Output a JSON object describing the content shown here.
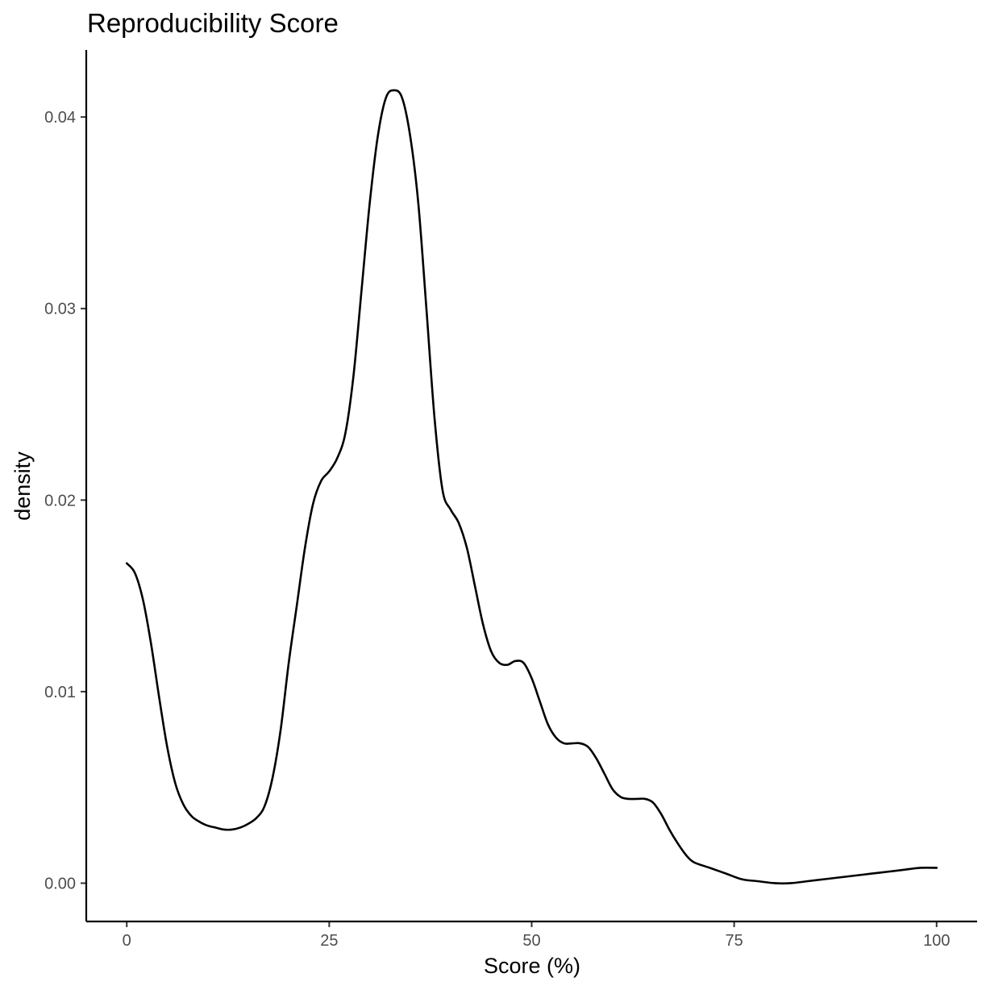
{
  "chart_data": {
    "type": "line",
    "title": "Reproducibility Score",
    "xlabel": "Score (%)",
    "ylabel": "density",
    "xlim": [
      -5,
      105
    ],
    "ylim": [
      -0.002,
      0.0435
    ],
    "x_ticks": [
      0,
      25,
      50,
      75,
      100
    ],
    "x_tick_labels": [
      "0",
      "25",
      "50",
      "75",
      "100"
    ],
    "y_ticks": [
      0.0,
      0.01,
      0.02,
      0.03,
      0.04
    ],
    "y_tick_labels": [
      "0.00",
      "0.01",
      "0.02",
      "0.03",
      "0.04"
    ],
    "grid": false,
    "legend": "none",
    "line_color": "#000000",
    "series": [
      {
        "x": [
          0,
          1,
          2,
          3,
          4,
          5,
          6,
          7,
          8,
          9,
          10,
          11,
          12,
          13,
          14,
          15,
          16,
          17,
          18,
          19,
          20,
          21,
          22,
          23,
          24,
          25,
          26,
          27,
          28,
          29,
          30,
          31,
          32,
          33,
          34,
          35,
          36,
          37,
          38,
          39,
          40,
          41,
          42,
          43,
          44,
          45,
          46,
          47,
          48,
          49,
          50,
          51,
          52,
          53,
          54,
          55,
          56,
          57,
          58,
          59,
          60,
          61,
          62,
          63,
          64,
          65,
          66,
          67,
          68,
          69,
          70,
          72,
          74,
          76,
          78,
          80,
          82,
          84,
          86,
          88,
          90,
          92,
          94,
          96,
          98,
          100
        ],
        "y": [
          0.0167,
          0.0162,
          0.0148,
          0.0125,
          0.0097,
          0.0071,
          0.0052,
          0.0041,
          0.0035,
          0.0032,
          0.003,
          0.0029,
          0.0028,
          0.0028,
          0.0029,
          0.0031,
          0.0034,
          0.004,
          0.0055,
          0.008,
          0.0115,
          0.0145,
          0.0175,
          0.0198,
          0.021,
          0.0215,
          0.0222,
          0.0235,
          0.0265,
          0.031,
          0.0355,
          0.039,
          0.041,
          0.0414,
          0.041,
          0.039,
          0.0355,
          0.03,
          0.0243,
          0.0205,
          0.0195,
          0.0188,
          0.0175,
          0.0155,
          0.0135,
          0.0121,
          0.0115,
          0.0114,
          0.0116,
          0.0115,
          0.0107,
          0.0095,
          0.0083,
          0.0076,
          0.0073,
          0.0073,
          0.0073,
          0.0071,
          0.0065,
          0.0057,
          0.0049,
          0.0045,
          0.0044,
          0.0044,
          0.0044,
          0.0042,
          0.0036,
          0.0028,
          0.0021,
          0.0015,
          0.0011,
          0.0008,
          0.0005,
          0.0002,
          0.0001,
          0.0,
          0.0,
          0.0001,
          0.0002,
          0.0003,
          0.0004,
          0.0005,
          0.0006,
          0.0007,
          0.0008,
          0.0008
        ]
      }
    ]
  }
}
